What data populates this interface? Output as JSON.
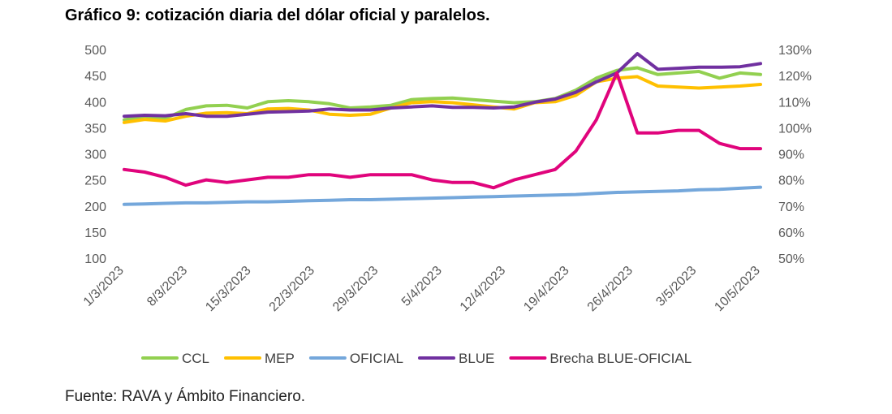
{
  "title": "Gráfico 9: cotización diaria del dólar oficial y paralelos.",
  "source": "Fuente: RAVA y Ámbito Financiero.",
  "chart_data": {
    "type": "line",
    "title": "Gráfico 9: cotización diaria del dólar oficial y paralelos.",
    "x_tick_labels": [
      "1/3/2023",
      "8/3/2023",
      "15/3/2023",
      "22/3/2023",
      "29/3/2023",
      "5/4/2023",
      "12/4/2023",
      "19/4/2023",
      "26/4/2023",
      "3/5/2023",
      "10/5/2023"
    ],
    "x": [
      "1/3/2023",
      "3/3/2023",
      "6/3/2023",
      "8/3/2023",
      "10/3/2023",
      "13/3/2023",
      "15/3/2023",
      "17/3/2023",
      "20/3/2023",
      "22/3/2023",
      "24/3/2023",
      "27/3/2023",
      "29/3/2023",
      "31/3/2023",
      "3/4/2023",
      "5/4/2023",
      "7/4/2023",
      "10/4/2023",
      "12/4/2023",
      "14/4/2023",
      "17/4/2023",
      "19/4/2023",
      "21/4/2023",
      "24/4/2023",
      "26/4/2023",
      "27/4/2023",
      "28/4/2023",
      "1/5/2023",
      "3/5/2023",
      "5/5/2023",
      "8/5/2023",
      "10/5/2023"
    ],
    "y_left": {
      "min": 100,
      "max": 500,
      "step": 50
    },
    "y_right": {
      "min": 50,
      "max": 130,
      "step": 10,
      "unit": "%"
    },
    "series": [
      {
        "name": "CCL",
        "axis": "left",
        "color": "#92D050",
        "values": [
          365,
          372,
          368,
          385,
          392,
          393,
          388,
          400,
          402,
          400,
          396,
          388,
          390,
          393,
          404,
          406,
          407,
          404,
          401,
          398,
          400,
          406,
          422,
          445,
          460,
          465,
          452,
          455,
          458,
          445,
          455,
          452
        ]
      },
      {
        "name": "MEP",
        "axis": "left",
        "color": "#FFC000",
        "values": [
          360,
          366,
          363,
          372,
          378,
          379,
          377,
          386,
          387,
          384,
          376,
          374,
          376,
          388,
          398,
          400,
          398,
          394,
          390,
          386,
          398,
          400,
          412,
          438,
          445,
          448,
          430,
          428,
          426,
          428,
          430,
          433
        ]
      },
      {
        "name": "OFICIAL",
        "axis": "left",
        "color": "#74A7DB",
        "values": [
          203,
          204,
          205,
          206,
          206,
          207,
          208,
          208,
          209,
          210,
          211,
          212,
          212,
          213,
          214,
          215,
          216,
          217,
          218,
          219,
          220,
          221,
          222,
          224,
          226,
          227,
          228,
          229,
          231,
          232,
          234,
          236
        ]
      },
      {
        "name": "BLUE",
        "axis": "left",
        "color": "#7030A0",
        "values": [
          372,
          374,
          373,
          377,
          372,
          372,
          376,
          380,
          381,
          382,
          386,
          384,
          384,
          388,
          390,
          392,
          389,
          389,
          388,
          390,
          399,
          405,
          418,
          438,
          455,
          492,
          462,
          464,
          466,
          466,
          467,
          473
        ]
      },
      {
        "name": "Brecha BLUE-OFICIAL",
        "axis": "right",
        "color": "#E0047C",
        "values": [
          84,
          83,
          81,
          78,
          80,
          79,
          80,
          81,
          81,
          82,
          82,
          81,
          82,
          82,
          82,
          80,
          79,
          79,
          77,
          80,
          82,
          84,
          91,
          103,
          121,
          98,
          98,
          99,
          99,
          94,
          92,
          92
        ]
      }
    ],
    "legend_position": "bottom",
    "grid": false
  }
}
